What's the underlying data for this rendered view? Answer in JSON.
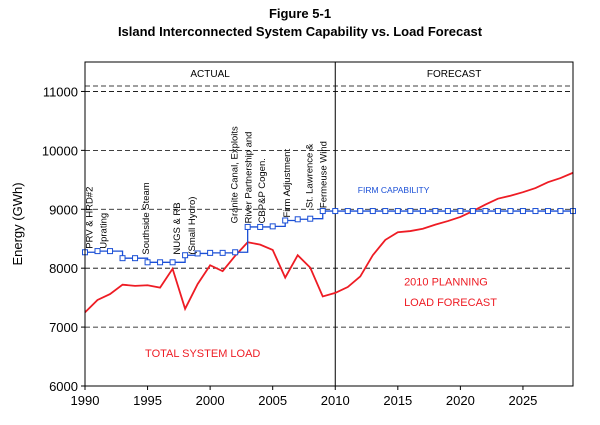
{
  "figure_label": "Figure 5-1",
  "chart_data": {
    "type": "line",
    "title": "Island Interconnected System Capability vs. Load Forecast",
    "xlabel": "",
    "ylabel": "Energy (GWh)",
    "xlim": [
      1990,
      2029
    ],
    "ylim": [
      6000,
      11500
    ],
    "xticks": [
      1990,
      1995,
      2000,
      2005,
      2010,
      2015,
      2020,
      2025
    ],
    "yticks": [
      6000,
      7000,
      8000,
      9000,
      10000,
      11000
    ],
    "grid": "dashed horizontal",
    "sections": [
      {
        "label": "ACTUAL",
        "from": 1990,
        "to": 2010
      },
      {
        "label": "FORECAST",
        "from": 2010,
        "to": 2029
      }
    ],
    "divider_x": 2010,
    "colors": {
      "load": "#ee1c24",
      "capability": "#1a4fd6",
      "text": "#000000",
      "grid": "#000000"
    },
    "series": [
      {
        "name": "TOTAL SYSTEM LOAD",
        "kind": "load",
        "x": [
          1990,
          1991,
          1992,
          1993,
          1994,
          1995,
          1996,
          1997,
          1998,
          1999,
          2000,
          2001,
          2002,
          2003,
          2004,
          2005,
          2006,
          2007,
          2008,
          2009,
          2010,
          2011,
          2012,
          2013,
          2014,
          2015,
          2016,
          2017,
          2018,
          2019,
          2020,
          2021,
          2022,
          2023,
          2024,
          2025,
          2026,
          2027,
          2028,
          2029
        ],
        "y": [
          7250,
          7460,
          7560,
          7720,
          7700,
          7710,
          7670,
          7990,
          7310,
          7730,
          8050,
          7950,
          8210,
          8440,
          8400,
          8310,
          7840,
          8220,
          8010,
          7520,
          7580,
          7680,
          7860,
          8220,
          8480,
          8610,
          8630,
          8670,
          8740,
          8800,
          8870,
          8970,
          9080,
          9180,
          9230,
          9290,
          9360,
          9460,
          9530,
          9620
        ]
      },
      {
        "name": "FIRM CAPABILITY",
        "kind": "capability",
        "step": true,
        "marker": "square",
        "x": [
          1990,
          1991,
          1992,
          1993,
          1994,
          1995,
          1996,
          1997,
          1998,
          1999,
          2000,
          2001,
          2002,
          2003,
          2004,
          2005,
          2006,
          2007,
          2008,
          2009,
          2010,
          2011,
          2012,
          2013,
          2014,
          2015,
          2016,
          2017,
          2018,
          2019,
          2020,
          2021,
          2022,
          2023,
          2024,
          2025,
          2026,
          2027,
          2028,
          2029
        ],
        "y": [
          8270,
          8290,
          8290,
          8170,
          8170,
          8100,
          8100,
          8100,
          8220,
          8250,
          8260,
          8260,
          8270,
          8700,
          8700,
          8710,
          8810,
          8830,
          8840,
          8970,
          8970,
          8970,
          8970,
          8970,
          8970,
          8970,
          8970,
          8970,
          8970,
          8970,
          8970,
          8970,
          8970,
          8970,
          8970,
          8970,
          8970,
          8970,
          8970,
          8970
        ]
      }
    ],
    "annotations": [
      {
        "id": "prv",
        "text": "PRV & HRD#2",
        "x": 1990.6,
        "y": 8330,
        "rotate": -90,
        "color": "#000000"
      },
      {
        "id": "uprating",
        "text": "Uprating",
        "x": 1991.7,
        "y": 8330,
        "rotate": -90,
        "color": "#000000"
      },
      {
        "id": "southside",
        "text": "Southside Steam",
        "x": 1995.1,
        "y": 8230,
        "rotate": -90,
        "color": "#000000"
      },
      {
        "id": "nugs",
        "text": "NUGS & RB",
        "x": 1997.6,
        "y": 8230,
        "rotate": -90,
        "color": "#000000"
      },
      {
        "id": "small-hydro",
        "text": "(Small Hydro)",
        "x": 1998.8,
        "y": 8230,
        "rotate": -90,
        "color": "#000000"
      },
      {
        "id": "granite",
        "text": "Granite Canal, Exploits",
        "x": 2002.2,
        "y": 8760,
        "rotate": -90,
        "color": "#000000"
      },
      {
        "id": "river",
        "text": "River Partnership  and",
        "x": 2003.3,
        "y": 8760,
        "rotate": -90,
        "color": "#000000"
      },
      {
        "id": "cbpp",
        "text": "CBP&P Cogen.",
        "x": 2004.4,
        "y": 8760,
        "rotate": -90,
        "color": "#000000"
      },
      {
        "id": "firm-adj",
        "text": "Firm Adjustment",
        "x": 2006.4,
        "y": 8860,
        "rotate": -90,
        "color": "#000000"
      },
      {
        "id": "stlawrence",
        "text": "St. Lawrence &",
        "x": 2008.2,
        "y": 9020,
        "rotate": -90,
        "color": "#000000"
      },
      {
        "id": "fermeuse",
        "text": "Fermeuse Wind",
        "x": 2009.3,
        "y": 9020,
        "rotate": -90,
        "color": "#000000"
      },
      {
        "id": "firm-cap-label",
        "text": "FIRM CAPABILITY",
        "x": 2011.8,
        "y": 9280,
        "rotate": 0,
        "color": "#1a4fd6"
      },
      {
        "id": "planning-1",
        "text": "2010 PLANNING",
        "x": 2015.5,
        "y": 7710,
        "rotate": 0,
        "color": "#ee1c24"
      },
      {
        "id": "planning-2",
        "text": "LOAD FORECAST",
        "x": 2015.5,
        "y": 7360,
        "rotate": 0,
        "color": "#ee1c24"
      },
      {
        "id": "total-load",
        "text": "TOTAL SYSTEM LOAD",
        "x": 1994.8,
        "y": 6490,
        "rotate": 0,
        "color": "#ee1c24"
      }
    ]
  }
}
